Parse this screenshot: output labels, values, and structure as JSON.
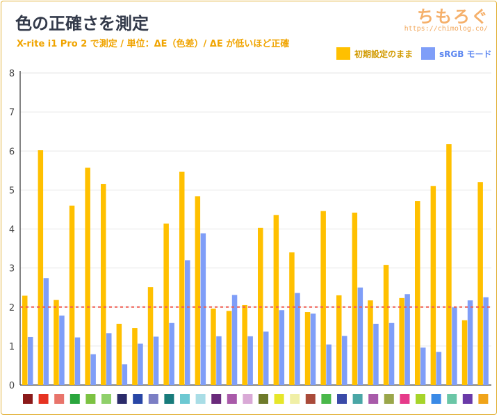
{
  "header": {
    "title": "色の正確さを測定",
    "subtitle": "X-rite i1 Pro 2 で測定 / 単位：ΔE（色差）/ ΔE が低いほど正確",
    "brand": "ちもろぐ",
    "brand_url": "https://chimolog.co/"
  },
  "colors": {
    "series_a": "#ffc000",
    "series_b": "#7f9ef8",
    "reference_line": "#ef5b50",
    "axis": "#5b5b5b",
    "grid": "#e6e6e6"
  },
  "chart_data": {
    "type": "bar",
    "ylim": [
      0,
      8
    ],
    "yticks": [
      "0",
      "1",
      "2",
      "3",
      "4",
      "5",
      "6",
      "7",
      "8"
    ],
    "grid": true,
    "legend_position": "top-right",
    "reference_value": 2,
    "series": [
      {
        "name": "初期設定のまま",
        "values": [
          2.29,
          6.02,
          2.18,
          4.6,
          5.57,
          5.15,
          1.57,
          1.46,
          2.51,
          4.14,
          5.47,
          4.84,
          1.96,
          1.9,
          2.05,
          4.03,
          4.36,
          3.4,
          1.87,
          4.46,
          2.3,
          4.42,
          2.17,
          3.08,
          2.23,
          4.72,
          5.1,
          6.18,
          1.66,
          5.2
        ]
      },
      {
        "name": "sRGB モード",
        "values": [
          1.23,
          2.74,
          1.78,
          1.22,
          0.79,
          1.33,
          0.53,
          1.06,
          1.24,
          1.59,
          3.2,
          3.89,
          1.25,
          2.31,
          1.25,
          1.37,
          1.92,
          2.36,
          1.83,
          1.04,
          1.26,
          2.5,
          1.57,
          1.59,
          2.33,
          0.96,
          0.85,
          1.99,
          2.17,
          2.25
        ]
      }
    ],
    "category_swatches": [
      "#8b1a1a",
      "#e63322",
      "#e8746b",
      "#2aa63d",
      "#7cc242",
      "#8fd06a",
      "#2b2b6a",
      "#2846a6",
      "#7b7ec4",
      "#187b7b",
      "#6cc8d2",
      "#a9dde6",
      "#6a2a7b",
      "#a95aa9",
      "#d9a9d6",
      "#6e7a2a",
      "#e6e62a",
      "#f0efa6",
      "#a94a3a",
      "#4ab84a",
      "#3a4aa8",
      "#4aa6a6",
      "#a85aa9",
      "#9aa64a",
      "#e63a8a",
      "#a6d42a",
      "#3a8ae6",
      "#6ac6a6",
      "#6a3aa8",
      "#f0a41a"
    ]
  }
}
